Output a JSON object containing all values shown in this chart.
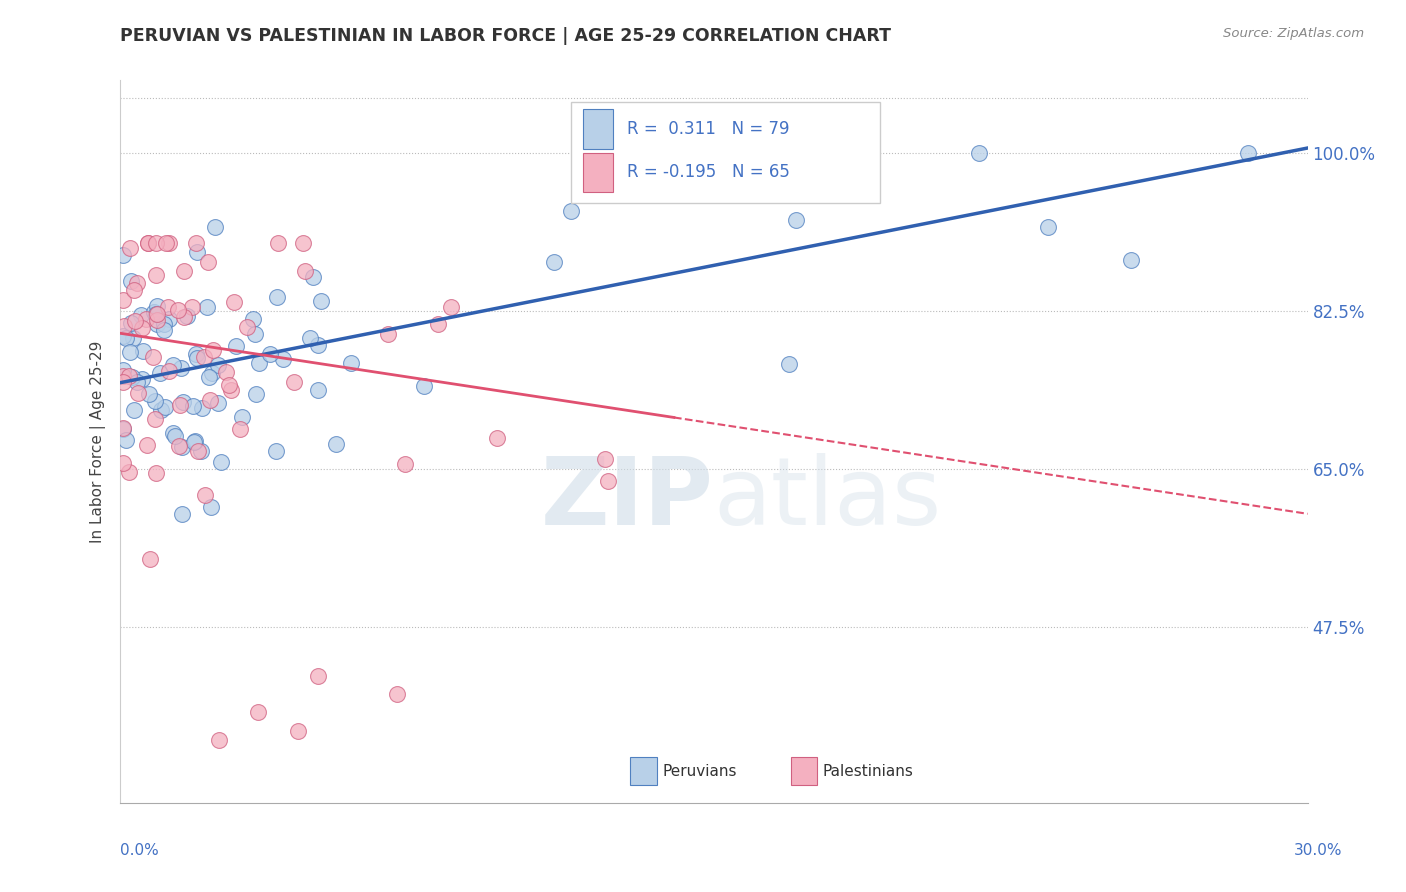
{
  "title": "PERUVIAN VS PALESTINIAN IN LABOR FORCE | AGE 25-29 CORRELATION CHART",
  "source": "Source: ZipAtlas.com",
  "ylabel": "In Labor Force | Age 25-29",
  "xlim": [
    0.0,
    30.0
  ],
  "ylim": [
    28.0,
    108.0
  ],
  "yticks": [
    47.5,
    65.0,
    82.5,
    100.0
  ],
  "ytick_labels": [
    "47.5%",
    "65.0%",
    "82.5%",
    "100.0%"
  ],
  "blue_color": "#b8d0e8",
  "pink_color": "#f4b0c0",
  "blue_edge_color": "#5080c0",
  "pink_edge_color": "#d06080",
  "blue_line_color": "#3060b0",
  "pink_line_color": "#e05070",
  "watermark_color": "#d0dde8",
  "blue_trend_x0": 0.0,
  "blue_trend_y0": 74.5,
  "blue_trend_x1": 30.0,
  "blue_trend_y1": 100.5,
  "pink_trend_x0": 0.0,
  "pink_trend_y0": 80.0,
  "pink_trend_x1": 30.0,
  "pink_trend_y1": 60.0,
  "pink_solid_end_x": 14.0,
  "legend_blue_text": "R =  0.311   N = 79",
  "legend_pink_text": "R = -0.195   N = 65",
  "bottom_legend_peruvians": "Peruvians",
  "bottom_legend_palestinians": "Palestinians"
}
